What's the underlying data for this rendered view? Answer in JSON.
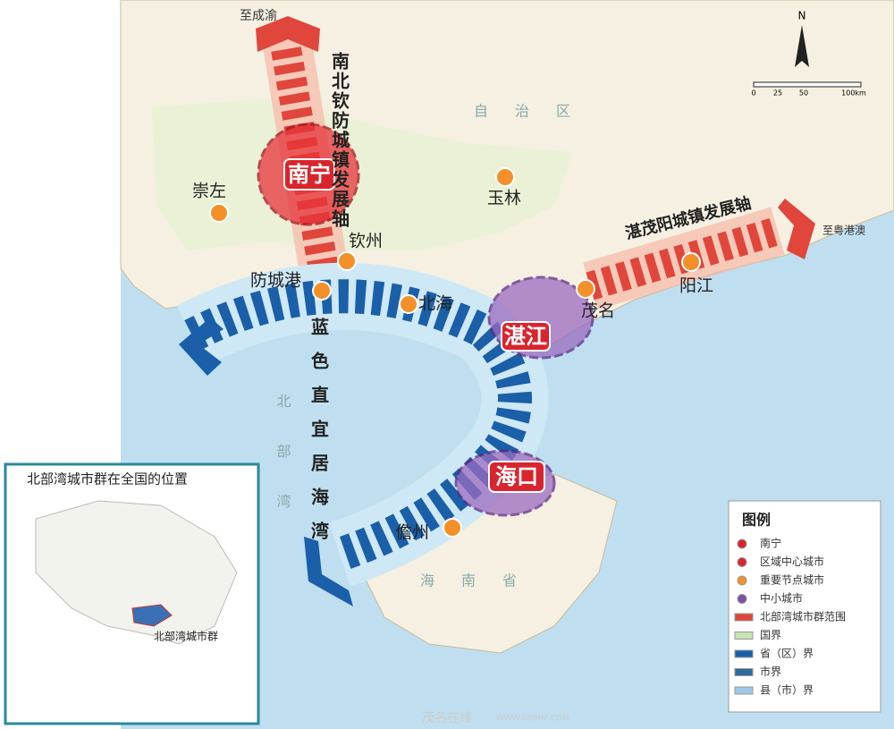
{
  "map": {
    "axes": {
      "north_south": "南北钦防城镇发展轴",
      "east": "湛茂阳城镇发展轴",
      "bay": "蓝色直宜居海湾"
    },
    "directions": {
      "north": "至成渝",
      "east": "至粤港澳"
    },
    "cities": {
      "nanning": "南宁",
      "zhanjiang": "湛江",
      "haikou": "海口",
      "chongzuo": "崇左",
      "yulin": "玉林",
      "qinzhou": "钦州",
      "fangchenggang": "防城港",
      "beihai": "北海",
      "maoming": "茂名",
      "yangjiang": "阳江",
      "danzhou": "儋州"
    },
    "regions": {
      "autonomous": "自治区",
      "gulf": "北部湾",
      "hainan": "海南省"
    },
    "compass": "N",
    "scale": [
      "0",
      "25",
      "50",
      "100km"
    ]
  },
  "inset": {
    "title": "北部湾城市群在全国的位置",
    "label": "北部湾城市群"
  },
  "legend": {
    "title": "图例",
    "items": [
      "南宁",
      "区域中心城市",
      "重要节点城市",
      "中小城市",
      "北部湾城市群范围",
      "国界",
      "省（区）界",
      "市界",
      "县（市）界"
    ]
  },
  "watermark": {
    "name": "茂名在线",
    "url": "WWW.GDMM.COM"
  }
}
